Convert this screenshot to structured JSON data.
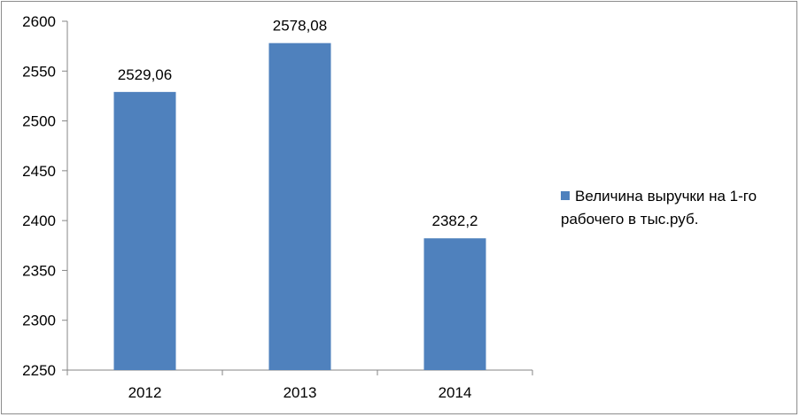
{
  "chart_data": {
    "type": "bar",
    "categories": [
      "2012",
      "2013",
      "2014"
    ],
    "series": [
      {
        "name": "Величина выручки на 1-го рабочего в тыс.руб.",
        "values": [
          2529.06,
          2578.08,
          2382.2
        ],
        "labels": [
          "2529,06",
          "2578,08",
          "2382,2"
        ],
        "color": "#4f81bd"
      }
    ],
    "ylim": [
      2250,
      2600
    ],
    "yticks": [
      "2250",
      "2300",
      "2350",
      "2400",
      "2450",
      "2500",
      "2550",
      "2600"
    ],
    "grid": false,
    "legend": "right"
  }
}
